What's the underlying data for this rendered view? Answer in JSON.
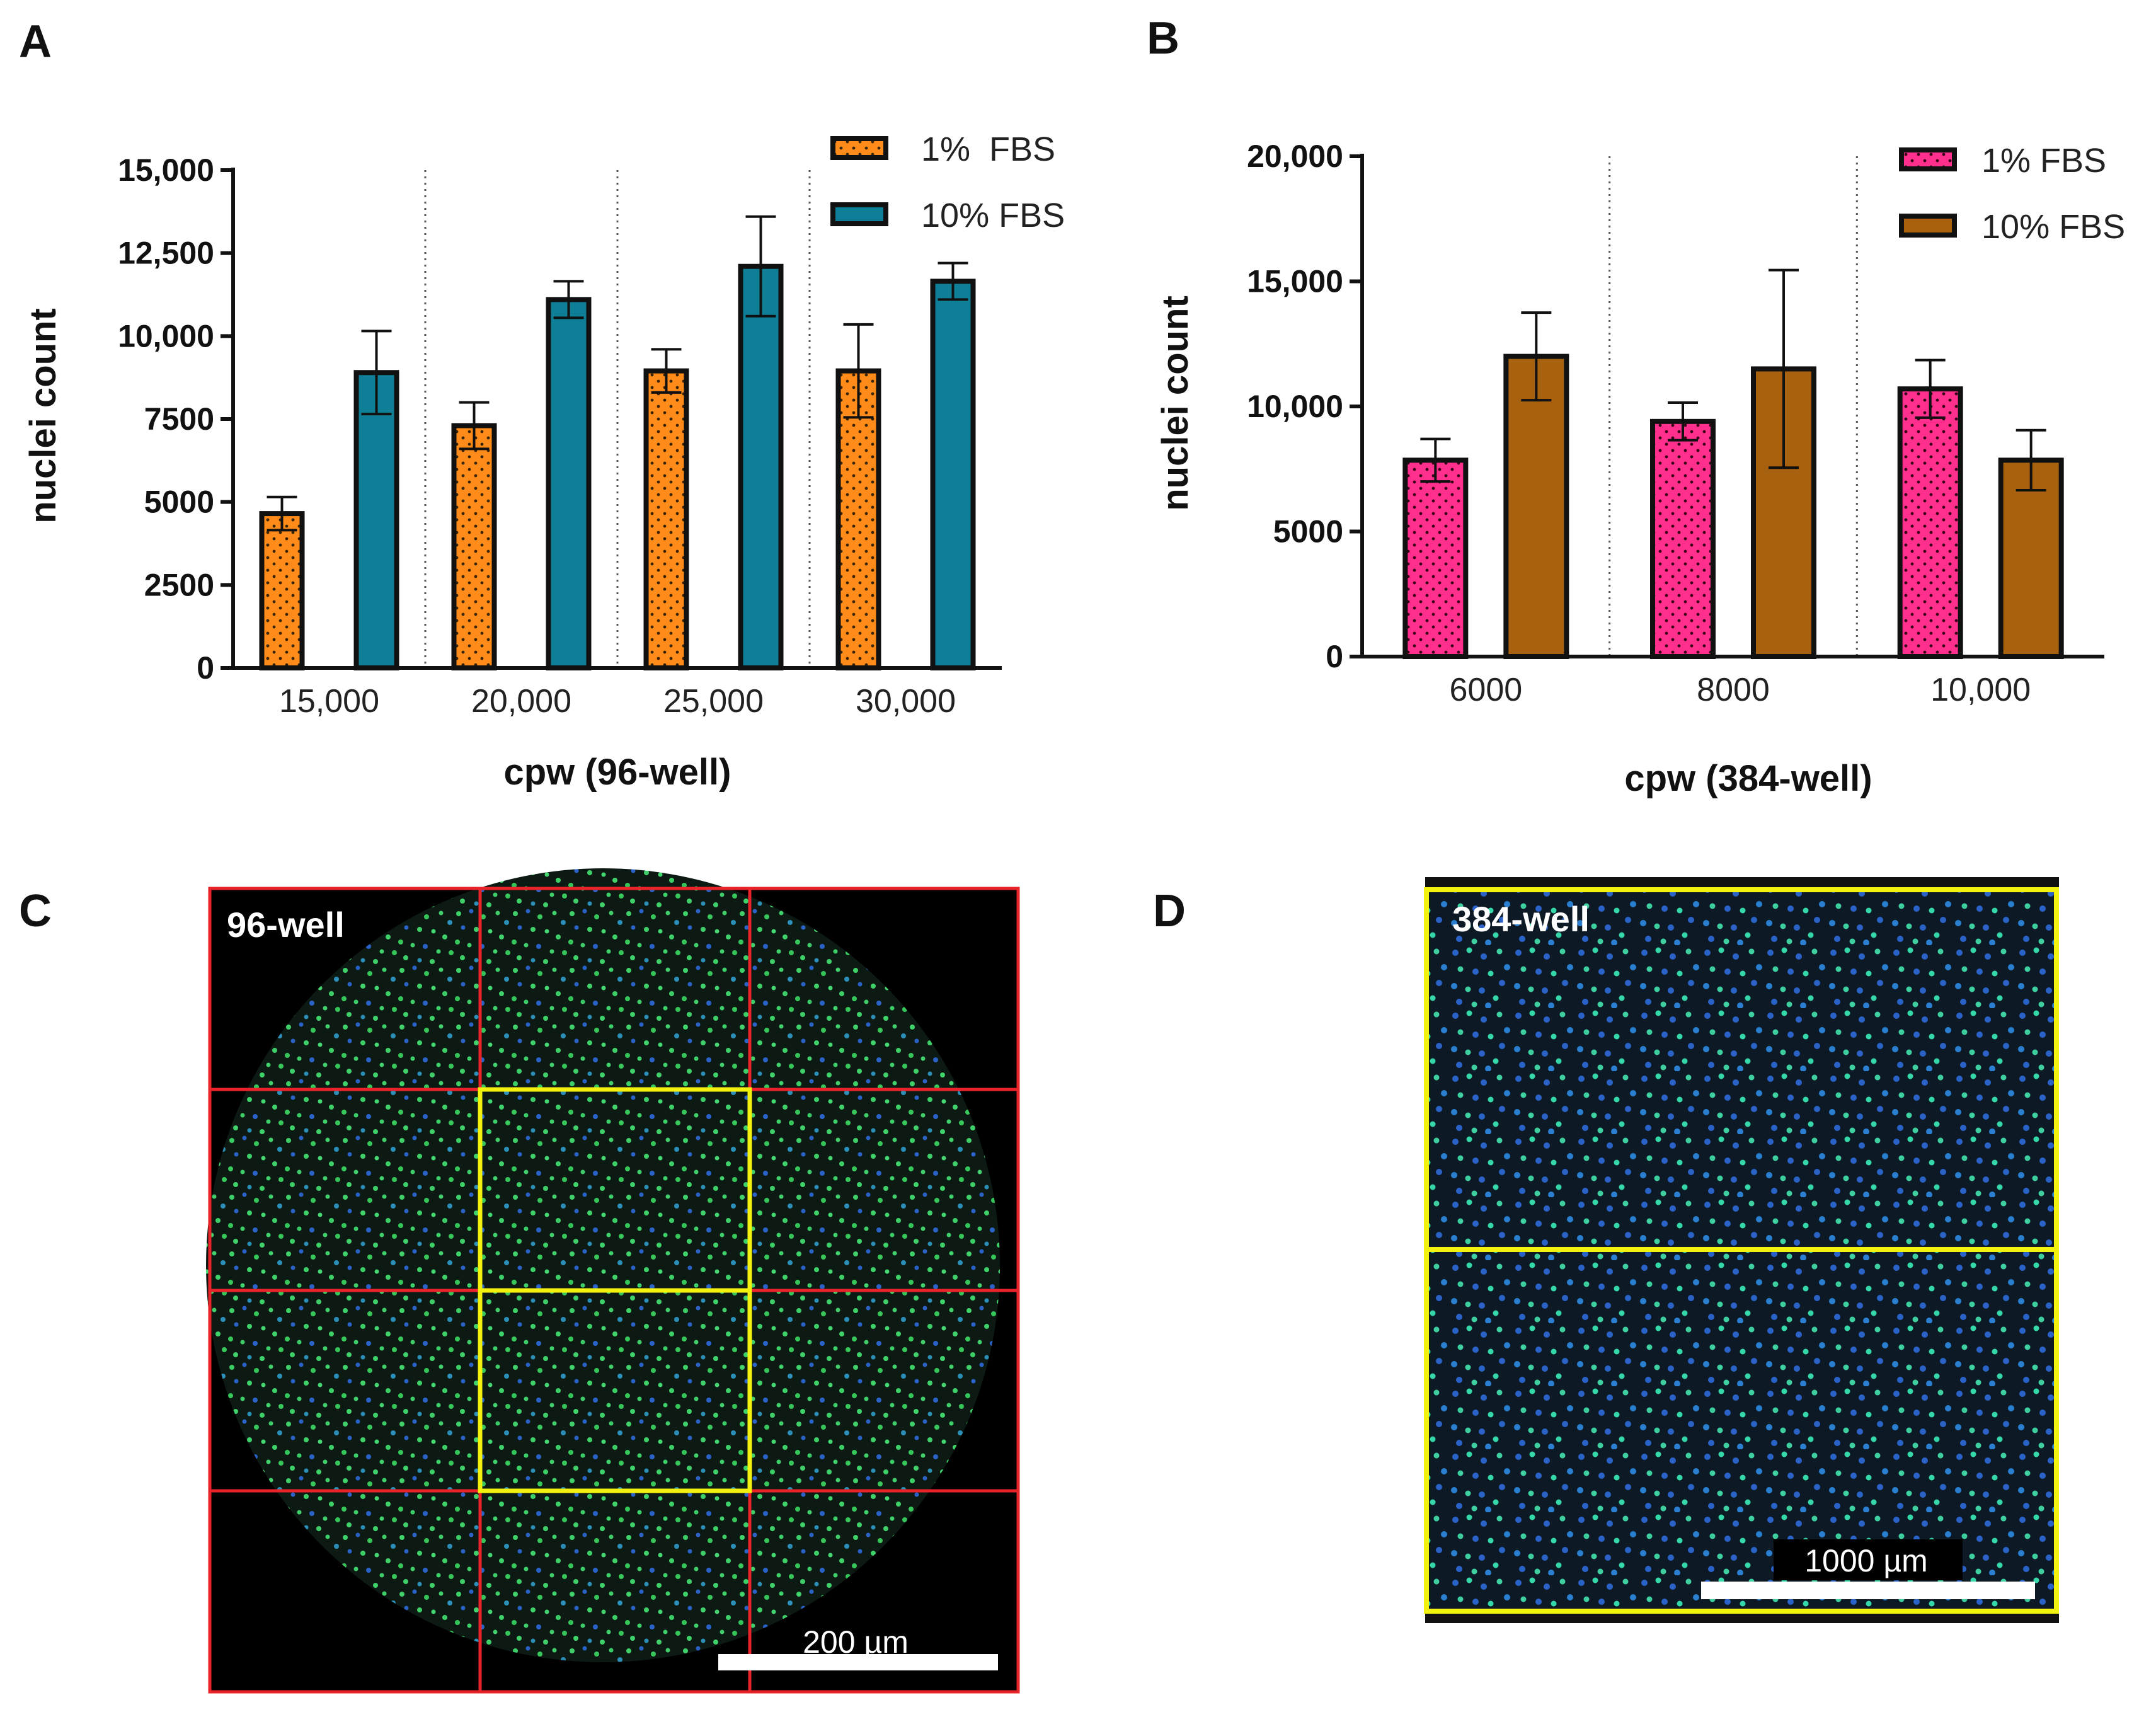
{
  "panels": {
    "A": "A",
    "B": "B",
    "C": "C",
    "D": "D"
  },
  "chart_data": [
    {
      "type": "bar",
      "panel": "A",
      "title": "",
      "xlabel": "cpw (96-well)",
      "ylabel": "nuclei count",
      "categories": [
        "15,000",
        "20,000",
        "25,000",
        "30,000"
      ],
      "ylim": [
        0,
        15000
      ],
      "yticks": [
        0,
        2500,
        5000,
        7500,
        10000,
        12500,
        15000
      ],
      "ytick_labels": [
        "0",
        "2500",
        "5000",
        "7500",
        "10,000",
        "12,500",
        "15,000"
      ],
      "legend_position": "top-right",
      "series": [
        {
          "name": "1%  FBS",
          "color": "#FF8C1A",
          "pattern": "dots",
          "values": [
            4650,
            7300,
            8950,
            8950
          ],
          "errors": [
            500,
            700,
            650,
            1400
          ]
        },
        {
          "name": "10% FBS",
          "color": "#0F7F97",
          "pattern": "solid",
          "values": [
            8900,
            11100,
            12100,
            11650
          ],
          "errors": [
            1250,
            550,
            1500,
            550
          ]
        }
      ]
    },
    {
      "type": "bar",
      "panel": "B",
      "title": "",
      "xlabel": "cpw (384-well)",
      "ylabel": "nuclei count",
      "categories": [
        "6000",
        "8000",
        "10,000"
      ],
      "ylim": [
        0,
        20000
      ],
      "yticks": [
        0,
        5000,
        10000,
        15000,
        20000
      ],
      "ytick_labels": [
        "0",
        "5000",
        "10,000",
        "15,000",
        "20,000"
      ],
      "legend_position": "top-right",
      "series": [
        {
          "name": "1% FBS",
          "color": "#FF2F8E",
          "pattern": "dots",
          "values": [
            7850,
            9400,
            10700
          ],
          "errors": [
            850,
            750,
            1150
          ]
        },
        {
          "name": "10% FBS",
          "color": "#A8610F",
          "pattern": "solid",
          "values": [
            12000,
            11500,
            7850
          ],
          "errors": [
            1750,
            3950,
            1200
          ]
        }
      ]
    }
  ],
  "images": {
    "c": {
      "label": "96-well",
      "scale_bar": "200 µm"
    },
    "d": {
      "label": "384-well",
      "scale_bar": "1000 µm"
    }
  },
  "colors": {
    "grid_red": "#E8232A",
    "roi_yellow": "#F2F20E",
    "nuclei_green": "#3FD06A",
    "nuclei_blue": "#2A62C8"
  }
}
